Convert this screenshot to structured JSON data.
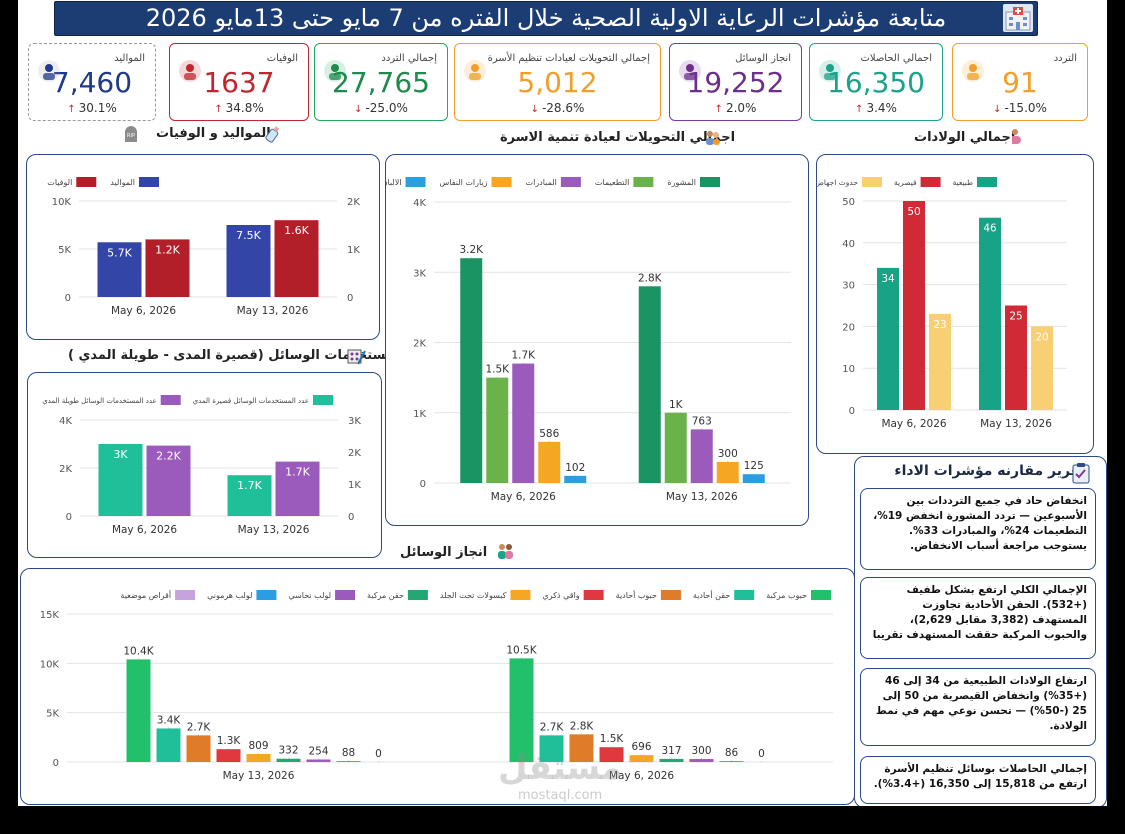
{
  "header": {
    "title": "متابعة مؤشرات الرعاية الاولية الصحية خلال الفتره من 7 مايو حتى 13مايو 2026"
  },
  "kpis": [
    {
      "key": "births",
      "label": "المواليد",
      "value": "7,460",
      "change": "30.1%",
      "dir": "up",
      "color": "#1f3a8a",
      "border": "#999999",
      "icon": "baby-bottle-icon"
    },
    {
      "key": "deaths",
      "label": "الوفيات",
      "value": "1637",
      "change": "34.8%",
      "dir": "up",
      "color": "#c0262d",
      "border": "#c0262d",
      "icon": "tombstone-icon"
    },
    {
      "key": "visits_total",
      "label": "إجمالي التردد",
      "value": "27,765",
      "change": "-25.0%",
      "dir": "down",
      "color": "#1e8a4b",
      "border": "#27a55a",
      "icon": "family-icon"
    },
    {
      "key": "referrals",
      "label": "إجمالي التحويلات لعيادات تنظيم الأسرة",
      "value": "5,012",
      "change": "-28.6%",
      "dir": "down",
      "color": "#f0a02a",
      "border": "#f0a02a",
      "icon": "couple-icon"
    },
    {
      "key": "methods",
      "label": "انجاز الوسائل",
      "value": "19,252",
      "change": "2.0%",
      "dir": "up",
      "color": "#6d2e8c",
      "border": "#7b3b9a",
      "icon": "contraceptives-icon"
    },
    {
      "key": "recipients",
      "label": "اجمالي الحاصلات",
      "value": "16,350",
      "change": "3.4%",
      "dir": "up",
      "color": "#1aa38a",
      "border": "#1aa38a",
      "icon": "women-icon"
    },
    {
      "key": "attendance",
      "label": "التردد",
      "value": "91",
      "change": "-15.0%",
      "dir": "down",
      "color": "#f0a02a",
      "border": "#f0a02a",
      "icon": "pregnant-icon"
    }
  ],
  "sections": {
    "births_deaths": "المواليد و الوفيات",
    "referrals": "اجمالي التحويلات لعيادة تنمية الاسرة",
    "deliveries": "اجمالي الولادات",
    "users": "مستخدمات الوسائل (قصيرة المدى - طويلة المدي )",
    "methods": "انجاز الوسائل",
    "report": "تقرير مقارنه مؤشرات الاداء"
  },
  "report": [
    "انخفاض حاد في جميع الترددات بين الأسبوعين — تردد المشورة انخفض 19%، التطعيمات 24%، والمبادرات 33%. يستوجب مراجعة أسباب الانخفاض.",
    "الإجمالي الكلي ارتفع بشكل طفيف (+532). الحقن الأحادية تجاوزت المستهدف (3,382 مقابل 2,629)، والحبوب المركبة حققت المستهدف تقريبا",
    "ارتفاع الولادات الطبيعية من 34 إلى 46 (+35%) وانخفاض القيصرية من 50 إلى 25 (-50%) — تحسن نوعي مهم في نمط الولادة.",
    "إجمالي الحاصلات بوسائل تنظيم الأسرة ارتفع من 15,818 إلى 16,350 (+3.4%)."
  ],
  "watermark": {
    "brand": "مستقل",
    "domain": "mostaql.com"
  },
  "chart_data": [
    {
      "id": "births_deaths",
      "type": "bar",
      "categories": [
        "May 6, 2026",
        "May 13, 2026"
      ],
      "series": [
        {
          "name": "المواليد",
          "values": [
            5700,
            7500
          ],
          "labels": [
            "5.7K",
            "7.5K"
          ],
          "axis": "left",
          "color": "#3346a8"
        },
        {
          "name": "الوفيات",
          "values": [
            1200,
            1600
          ],
          "labels": [
            "1.2K",
            "1.6K"
          ],
          "axis": "right",
          "color": "#b21f29"
        }
      ],
      "ylim": [
        0,
        10000
      ],
      "ylim_right": [
        0,
        2000
      ],
      "yticks": [
        "0",
        "5K",
        "10K"
      ],
      "yticks_right": [
        "0",
        "1K",
        "2K"
      ]
    },
    {
      "id": "referrals",
      "type": "bar",
      "categories": [
        "May 6, 2026",
        "May 13, 2026"
      ],
      "series": [
        {
          "name": "المشورة",
          "values": [
            3200,
            2800
          ],
          "labels": [
            "3.2K",
            "2.8K"
          ],
          "color": "#1b9464"
        },
        {
          "name": "التطعيمات",
          "values": [
            1500,
            1000
          ],
          "labels": [
            "1.5K",
            "1K"
          ],
          "color": "#6ab24a"
        },
        {
          "name": "المبادرات",
          "values": [
            1700,
            763
          ],
          "labels": [
            "1.7K",
            "763"
          ],
          "color": "#9a5bbd"
        },
        {
          "name": "زيارات النفاس",
          "values": [
            586,
            300
          ],
          "labels": [
            "586",
            "300"
          ],
          "color": "#f5a623"
        },
        {
          "name": "الالبان",
          "values": [
            102,
            125
          ],
          "labels": [
            "102",
            "125"
          ],
          "color": "#2a9ee0"
        }
      ],
      "ylim": [
        0,
        4000
      ],
      "yticks": [
        "0",
        "1K",
        "2K",
        "3K",
        "4K"
      ]
    },
    {
      "id": "deliveries",
      "type": "bar",
      "categories": [
        "May 6, 2026",
        "May 13, 2026"
      ],
      "series": [
        {
          "name": "طبيعية",
          "values": [
            34,
            46
          ],
          "labels": [
            "34",
            "46"
          ],
          "color": "#17a386"
        },
        {
          "name": "قيصرية",
          "values": [
            50,
            25
          ],
          "labels": [
            "50",
            "25"
          ],
          "color": "#d02a36"
        },
        {
          "name": "حدوث اجهاض",
          "values": [
            23,
            20
          ],
          "labels": [
            "23",
            "20"
          ],
          "color": "#f8cf73"
        }
      ],
      "ylim": [
        0,
        50
      ],
      "yticks": [
        "0",
        "10",
        "20",
        "30",
        "40",
        "50"
      ]
    },
    {
      "id": "users",
      "type": "bar",
      "categories": [
        "May 6, 2026",
        "May 13, 2026"
      ],
      "series": [
        {
          "name": "عدد المستخدمات الوسائل قصيرة المدي",
          "values": [
            3000,
            1700
          ],
          "labels": [
            "3K",
            "1.7K"
          ],
          "axis": "left",
          "color": "#1fbf9a"
        },
        {
          "name": "عدد المستخدمات الوسائل طويلة المدي",
          "values": [
            2200,
            1700
          ],
          "labels": [
            "2.2K",
            "1.7K"
          ],
          "axis": "right",
          "color": "#9a5bbd"
        }
      ],
      "ylim": [
        0,
        4000
      ],
      "ylim_right": [
        0,
        3000
      ],
      "yticks": [
        "0",
        "2K",
        "4K"
      ],
      "yticks_right": [
        "0",
        "1K",
        "2K",
        "3K"
      ]
    },
    {
      "id": "methods",
      "type": "bar",
      "categories": [
        "May 13, 2026",
        "May 6, 2026"
      ],
      "series": [
        {
          "name": "حبوب مركبة",
          "values": [
            10400,
            10500
          ],
          "labels": [
            "10.4K",
            "10.5K"
          ],
          "color": "#22c06b"
        },
        {
          "name": "حقن أحادية",
          "values": [
            3400,
            2700
          ],
          "labels": [
            "3.4K",
            "2.7K"
          ],
          "color": "#1fbf9a"
        },
        {
          "name": "حبوب أحادية",
          "values": [
            2700,
            2800
          ],
          "labels": [
            "2.7K",
            "2.8K"
          ],
          "color": "#e07b27"
        },
        {
          "name": "واقي ذكري",
          "values": [
            1300,
            1500
          ],
          "labels": [
            "1.3K",
            "1.5K"
          ],
          "color": "#e0383f"
        },
        {
          "name": "كبسولات تحت الجلد",
          "values": [
            809,
            696
          ],
          "labels": [
            "809",
            "696"
          ],
          "color": "#f5a623"
        },
        {
          "name": "حقن مركبة",
          "values": [
            332,
            317
          ],
          "labels": [
            "332",
            "317"
          ],
          "color": "#22a873"
        },
        {
          "name": "لولب نحاسي",
          "values": [
            254,
            300
          ],
          "labels": [
            "254",
            "300"
          ],
          "color": "#9a5bbd"
        },
        {
          "name": "لولب هرموني",
          "values": [
            88,
            86
          ],
          "labels": [
            "88",
            "86"
          ],
          "color": "#2a9ee0"
        },
        {
          "name": "أقراص موضعية",
          "values": [
            0,
            0
          ],
          "labels": [
            "0",
            "0"
          ],
          "color": "#c8a2dc"
        }
      ],
      "ylim": [
        0,
        15000
      ],
      "yticks": [
        "0",
        "5K",
        "10K",
        "15K"
      ]
    }
  ]
}
